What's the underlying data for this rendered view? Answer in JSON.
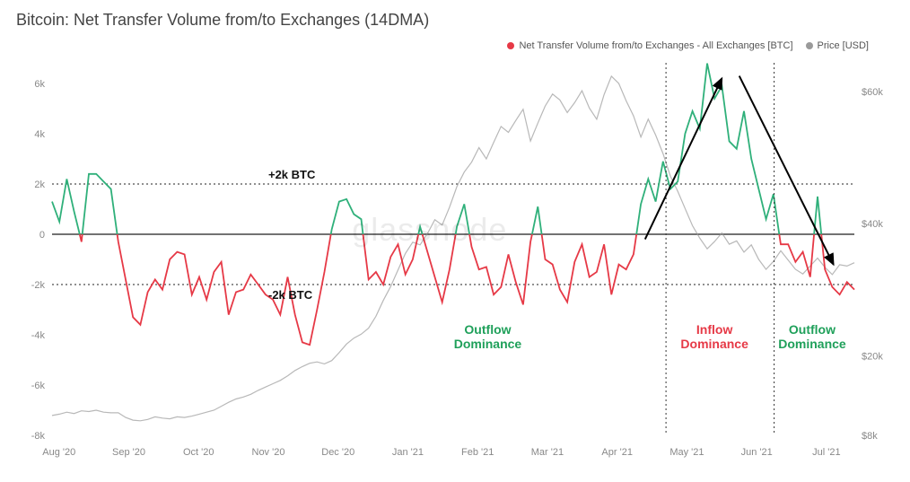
{
  "title": "Bitcoin: Net Transfer Volume from/to Exchanges (14DMA)",
  "watermark": "glassnode",
  "legend": {
    "series1": {
      "label": "Net Transfer Volume from/to Exchanges - All Exchanges [BTC]",
      "color_pos": "#2fb07a",
      "color_neg": "#e63946",
      "dot_color": "#e63946"
    },
    "series2": {
      "label": "Price [USD]",
      "color": "#9a9a9a"
    }
  },
  "chart": {
    "type": "line",
    "background": "#ffffff",
    "grid_color": "#d0d0d0",
    "axis_color": "#999999",
    "left_axis": {
      "min": -8000,
      "max": 7000,
      "ticks": [
        -8000,
        -6000,
        -4000,
        -2000,
        0,
        2000,
        4000,
        6000
      ],
      "tick_labels": [
        "-8k",
        "-6k",
        "-4k",
        "-2k",
        "0",
        "2k",
        "4k",
        "6k"
      ]
    },
    "right_axis": {
      "min": 8000,
      "max": 65000,
      "ticks": [
        8000,
        20000,
        40000,
        60000
      ],
      "tick_labels": [
        "$8k",
        "$20k",
        "$40k",
        "$60k"
      ]
    },
    "x_axis": {
      "labels": [
        "Aug '20",
        "Sep '20",
        "Oct '20",
        "Nov '20",
        "Dec '20",
        "Jan '21",
        "Feb '21",
        "Mar '21",
        "Apr '21",
        "May '21",
        "Jun '21",
        "Jul '21"
      ]
    },
    "reference_lines": {
      "pos2k": {
        "value": 2000,
        "label": "+2k BTC",
        "style": "dotted",
        "color": "#222"
      },
      "neg2k": {
        "value": -2000,
        "label": "-2k BTC",
        "style": "dotted",
        "color": "#222"
      },
      "zero": {
        "value": 0,
        "color": "#444",
        "width": 1.4
      }
    },
    "vertical_guides": [
      {
        "x_index": 8.8,
        "style": "dotted",
        "color": "#333"
      },
      {
        "x_index": 10.35,
        "style": "dotted",
        "color": "#333"
      }
    ],
    "annotations": {
      "outflow1": {
        "text_line1": "Outflow",
        "text_line2": "Dominance",
        "color": "#1fa05a",
        "x_index": 6.3,
        "y_value": -3800,
        "fontsize": 14
      },
      "inflow": {
        "text_line1": "Inflow",
        "text_line2": "Dominance",
        "color": "#e63946",
        "x_index": 9.55,
        "y_value": -3800,
        "fontsize": 14
      },
      "outflow2": {
        "text_line1": "Outflow",
        "text_line2": "Dominance",
        "color": "#1fa05a",
        "x_index": 10.95,
        "y_value": -3800,
        "fontsize": 14
      }
    },
    "arrows": [
      {
        "x1_index": 8.5,
        "y1_value": -200,
        "x2_index": 9.6,
        "y2_value": 6200,
        "color": "#000"
      },
      {
        "x1_index": 9.85,
        "y1_value": 6300,
        "x2_index": 11.2,
        "y2_value": -1200,
        "color": "#000"
      }
    ],
    "net_volume_data": [
      1300,
      500,
      2200,
      900,
      -300,
      2400,
      2400,
      2100,
      1800,
      -300,
      -1800,
      -3300,
      -3600,
      -2300,
      -1800,
      -2200,
      -1000,
      -700,
      -800,
      -2400,
      -1700,
      -2600,
      -1500,
      -1100,
      -3200,
      -2300,
      -2200,
      -1600,
      -2000,
      -2400,
      -2600,
      -3200,
      -1700,
      -3200,
      -4300,
      -4400,
      -3000,
      -1500,
      200,
      1300,
      1400,
      800,
      600,
      -1800,
      -1500,
      -2000,
      -900,
      -400,
      -1600,
      -1000,
      300,
      -700,
      -1700,
      -2700,
      -1400,
      300,
      1200,
      -500,
      -1400,
      -1300,
      -2400,
      -2100,
      -800,
      -1900,
      -2800,
      -300,
      1100,
      -1000,
      -1200,
      -2200,
      -2700,
      -1100,
      -400,
      -1700,
      -1500,
      -400,
      -2400,
      -1200,
      -1400,
      -800,
      1200,
      2200,
      1300,
      2900,
      1800,
      2100,
      4000,
      4900,
      4200,
      6800,
      5400,
      5900,
      3700,
      3400,
      4900,
      3000,
      1800,
      600,
      1600,
      -400,
      -400,
      -1100,
      -700,
      -1700,
      1500,
      -1400,
      -2100,
      -2400,
      -1900,
      -2200
    ],
    "price_data": [
      11000,
      11200,
      11500,
      11300,
      11700,
      11600,
      11800,
      11500,
      11400,
      11400,
      10700,
      10300,
      10200,
      10400,
      10800,
      10600,
      10500,
      10800,
      10700,
      10900,
      11200,
      11500,
      11800,
      12400,
      13000,
      13500,
      13800,
      14200,
      14800,
      15300,
      15800,
      16300,
      17000,
      17800,
      18400,
      18900,
      19100,
      18800,
      19300,
      20500,
      21800,
      22700,
      23300,
      24200,
      26000,
      28400,
      30500,
      33000,
      35500,
      37200,
      36800,
      38500,
      40600,
      39800,
      42500,
      45600,
      47800,
      49300,
      51500,
      49800,
      52300,
      54700,
      53800,
      55600,
      57300,
      52500,
      55200,
      57800,
      59600,
      58700,
      56800,
      58300,
      60100,
      57500,
      55800,
      59500,
      62300,
      61200,
      58600,
      56300,
      53100,
      55800,
      53400,
      50600,
      47200,
      44900,
      42300,
      39700,
      37800,
      36200,
      37300,
      38600,
      36900,
      37400,
      35700,
      36800,
      34600,
      33100,
      34300,
      35900,
      34500,
      33100,
      32400,
      33600,
      34800,
      33400,
      32300,
      33800,
      33600,
      34100
    ]
  }
}
